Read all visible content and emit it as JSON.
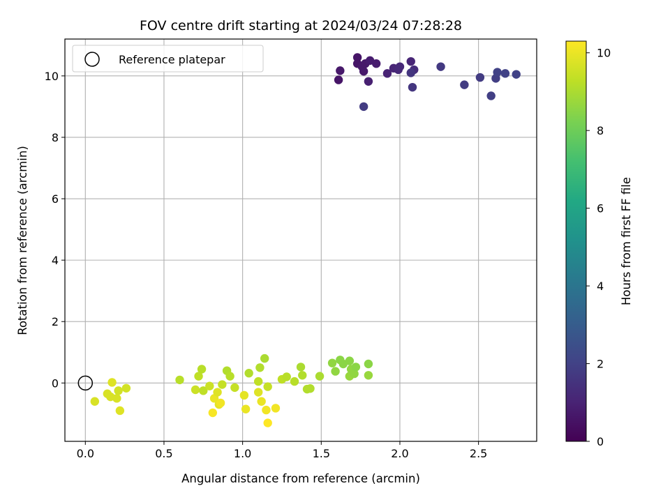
{
  "chart_data": {
    "type": "scatter",
    "title": "FOV centre drift starting at 2024/03/24 07:28:28",
    "xlabel": "Angular distance from reference (arcmin)",
    "ylabel": "Rotation from reference (arcmin)",
    "xlim": [
      -0.13,
      2.87
    ],
    "ylim": [
      -1.9,
      11.2
    ],
    "x_ticks": [
      "0.0",
      "0.5",
      "1.0",
      "1.5",
      "2.0",
      "2.5"
    ],
    "x_tick_values": [
      0,
      0.5,
      1.0,
      1.5,
      2.0,
      2.5
    ],
    "y_ticks": [
      "0",
      "2",
      "4",
      "6",
      "8",
      "10"
    ],
    "y_tick_values": [
      0,
      2,
      4,
      6,
      8,
      10
    ],
    "grid": true,
    "legend": {
      "placement": "top-left",
      "entries": [
        "Reference platepar"
      ]
    },
    "reference_point": {
      "x": 0.0,
      "y": 0.0
    },
    "colorbar": {
      "label": "Hours from first FF file",
      "colormap": "viridis",
      "range": [
        0,
        10.3
      ],
      "ticks": [
        "0",
        "2",
        "4",
        "6",
        "8",
        "10"
      ],
      "tick_values": [
        0,
        2,
        4,
        6,
        8,
        10
      ]
    },
    "points": [
      {
        "x": 1.73,
        "y": 10.6,
        "c": 0.6
      },
      {
        "x": 1.73,
        "y": 10.4,
        "c": 0.6
      },
      {
        "x": 1.76,
        "y": 10.3,
        "c": 0.7
      },
      {
        "x": 1.78,
        "y": 10.4,
        "c": 0.7
      },
      {
        "x": 1.81,
        "y": 10.5,
        "c": 0.8
      },
      {
        "x": 1.85,
        "y": 10.4,
        "c": 0.8
      },
      {
        "x": 1.77,
        "y": 10.15,
        "c": 0.7
      },
      {
        "x": 1.8,
        "y": 9.82,
        "c": 0.9
      },
      {
        "x": 1.61,
        "y": 9.87,
        "c": 0.6
      },
      {
        "x": 1.62,
        "y": 10.17,
        "c": 0.7
      },
      {
        "x": 1.92,
        "y": 10.08,
        "c": 1.0
      },
      {
        "x": 1.96,
        "y": 10.25,
        "c": 1.1
      },
      {
        "x": 1.99,
        "y": 10.2,
        "c": 1.2
      },
      {
        "x": 2.0,
        "y": 10.3,
        "c": 1.2
      },
      {
        "x": 2.07,
        "y": 10.47,
        "c": 1.1
      },
      {
        "x": 2.09,
        "y": 10.2,
        "c": 1.3
      },
      {
        "x": 2.07,
        "y": 10.1,
        "c": 1.6
      },
      {
        "x": 2.08,
        "y": 9.63,
        "c": 1.6
      },
      {
        "x": 2.26,
        "y": 10.3,
        "c": 1.7
      },
      {
        "x": 1.77,
        "y": 9.0,
        "c": 1.8
      },
      {
        "x": 2.41,
        "y": 9.71,
        "c": 1.8
      },
      {
        "x": 2.51,
        "y": 9.95,
        "c": 1.8
      },
      {
        "x": 2.58,
        "y": 9.35,
        "c": 1.9
      },
      {
        "x": 2.61,
        "y": 9.92,
        "c": 1.9
      },
      {
        "x": 2.62,
        "y": 10.12,
        "c": 2.0
      },
      {
        "x": 2.67,
        "y": 10.08,
        "c": 2.0
      },
      {
        "x": 2.74,
        "y": 10.05,
        "c": 2.0
      },
      {
        "x": 0.06,
        "y": -0.6,
        "c": 9.7
      },
      {
        "x": 0.14,
        "y": -0.35,
        "c": 9.7
      },
      {
        "x": 0.16,
        "y": -0.45,
        "c": 9.7
      },
      {
        "x": 0.17,
        "y": 0.02,
        "c": 9.8
      },
      {
        "x": 0.2,
        "y": -0.5,
        "c": 9.7
      },
      {
        "x": 0.21,
        "y": -0.25,
        "c": 9.6
      },
      {
        "x": 0.22,
        "y": -0.9,
        "c": 9.8
      },
      {
        "x": 0.26,
        "y": -0.17,
        "c": 9.6
      },
      {
        "x": 0.6,
        "y": 0.1,
        "c": 9.2
      },
      {
        "x": 0.7,
        "y": -0.22,
        "c": 9.5
      },
      {
        "x": 0.72,
        "y": 0.22,
        "c": 9.3
      },
      {
        "x": 0.74,
        "y": 0.45,
        "c": 9.2
      },
      {
        "x": 0.75,
        "y": -0.25,
        "c": 9.3
      },
      {
        "x": 0.79,
        "y": -0.1,
        "c": 9.5
      },
      {
        "x": 0.81,
        "y": -0.97,
        "c": 10.2
      },
      {
        "x": 0.82,
        "y": -0.5,
        "c": 10.0
      },
      {
        "x": 0.84,
        "y": -0.3,
        "c": 9.8
      },
      {
        "x": 0.85,
        "y": -0.7,
        "c": 9.9
      },
      {
        "x": 0.86,
        "y": -0.65,
        "c": 10.1
      },
      {
        "x": 0.87,
        "y": -0.05,
        "c": 9.4
      },
      {
        "x": 0.9,
        "y": 0.4,
        "c": 9.1
      },
      {
        "x": 0.92,
        "y": 0.22,
        "c": 9.2
      },
      {
        "x": 0.95,
        "y": -0.15,
        "c": 9.4
      },
      {
        "x": 1.01,
        "y": -0.4,
        "c": 9.9
      },
      {
        "x": 1.02,
        "y": -0.85,
        "c": 10.0
      },
      {
        "x": 1.04,
        "y": 0.32,
        "c": 9.1
      },
      {
        "x": 1.1,
        "y": 0.05,
        "c": 9.3
      },
      {
        "x": 1.1,
        "y": -0.3,
        "c": 9.8
      },
      {
        "x": 1.11,
        "y": 0.5,
        "c": 9.1
      },
      {
        "x": 1.12,
        "y": -0.6,
        "c": 10.0
      },
      {
        "x": 1.14,
        "y": 0.8,
        "c": 9.0
      },
      {
        "x": 1.15,
        "y": -0.88,
        "c": 10.1
      },
      {
        "x": 1.16,
        "y": -0.12,
        "c": 9.4
      },
      {
        "x": 1.16,
        "y": -1.3,
        "c": 10.3
      },
      {
        "x": 1.21,
        "y": -0.82,
        "c": 10.1
      },
      {
        "x": 1.25,
        "y": 0.12,
        "c": 9.3
      },
      {
        "x": 1.28,
        "y": 0.2,
        "c": 9.2
      },
      {
        "x": 1.33,
        "y": 0.05,
        "c": 9.2
      },
      {
        "x": 1.37,
        "y": 0.52,
        "c": 9.0
      },
      {
        "x": 1.38,
        "y": 0.25,
        "c": 9.1
      },
      {
        "x": 1.41,
        "y": -0.2,
        "c": 9.1
      },
      {
        "x": 1.43,
        "y": -0.18,
        "c": 9.1
      },
      {
        "x": 1.49,
        "y": 0.22,
        "c": 9.0
      },
      {
        "x": 1.57,
        "y": 0.65,
        "c": 8.6
      },
      {
        "x": 1.59,
        "y": 0.38,
        "c": 8.6
      },
      {
        "x": 1.62,
        "y": 0.75,
        "c": 8.5
      },
      {
        "x": 1.64,
        "y": 0.62,
        "c": 8.5
      },
      {
        "x": 1.68,
        "y": 0.72,
        "c": 8.5
      },
      {
        "x": 1.68,
        "y": 0.22,
        "c": 8.7
      },
      {
        "x": 1.69,
        "y": 0.45,
        "c": 8.6
      },
      {
        "x": 1.71,
        "y": 0.3,
        "c": 8.6
      },
      {
        "x": 1.72,
        "y": 0.52,
        "c": 8.5
      },
      {
        "x": 1.8,
        "y": 0.62,
        "c": 8.5
      },
      {
        "x": 1.8,
        "y": 0.25,
        "c": 8.7
      }
    ]
  }
}
